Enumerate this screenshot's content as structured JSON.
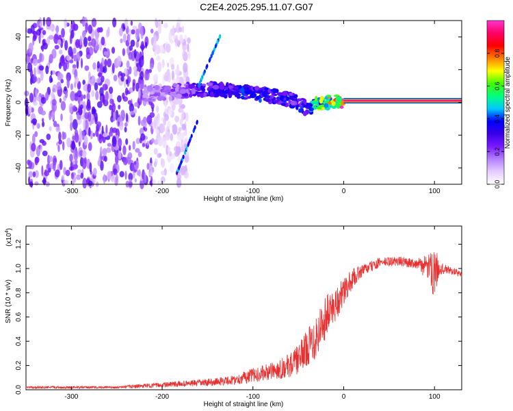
{
  "title": "C2E4.2025.295.11.07.G07",
  "chart_data": [
    {
      "type": "heatmap",
      "name": "spectrogram",
      "xlabel": "Height of straight line (km)",
      "ylabel": "Frequency (Hz)",
      "xlim": [
        -350,
        130
      ],
      "ylim": [
        -50,
        50
      ],
      "x_ticks": [
        -300,
        -200,
        -100,
        0,
        100
      ],
      "x_tick_labels": [
        "-300",
        "-200",
        "-100",
        "0",
        "100"
      ],
      "y_ticks": [
        -40,
        -20,
        0,
        20,
        40
      ],
      "y_tick_labels": [
        "-40",
        "-20",
        "0",
        "20",
        "40"
      ],
      "colorbar": {
        "label": "Normalized spectral amplitude",
        "range": [
          0,
          1
        ],
        "ticks": [
          0.0,
          0.2,
          0.4,
          0.6,
          0.8
        ],
        "tick_labels": [
          "0.0",
          "0.2",
          "0.4",
          "0.6",
          "0.8"
        ],
        "colors": [
          "#ffffff",
          "#e6ccff",
          "#b380ff",
          "#7a1aff",
          "#3a00e8",
          "#0000ff",
          "#00c8ff",
          "#00ff80",
          "#40ff00",
          "#ffff00",
          "#ff8000",
          "#ff0000",
          "#ff0066",
          "#ff33cc"
        ]
      },
      "noise_region_km": [
        -350,
        -210
      ],
      "signal_track": {
        "x_km": [
          -220,
          -180,
          -150,
          -120,
          -90,
          -70,
          -55,
          -45,
          -40,
          -30,
          -20,
          -10,
          0,
          130
        ],
        "freq_hz": [
          5,
          7,
          8,
          7,
          5,
          3,
          1,
          -2,
          -5,
          -1,
          0,
          1,
          1,
          1
        ],
        "amplitude": [
          0.15,
          0.2,
          0.3,
          0.35,
          0.35,
          0.35,
          0.3,
          0.35,
          0.3,
          0.55,
          0.65,
          0.7,
          0.95,
          0.95
        ]
      },
      "diagonal_features": [
        {
          "x_km": [
            -185,
            -160
          ],
          "freq_hz": [
            -45,
            -10
          ]
        },
        {
          "x_km": [
            -160,
            -135
          ],
          "freq_hz": [
            10,
            42
          ]
        }
      ]
    },
    {
      "type": "line",
      "name": "snr",
      "xlabel": "Height of straight line (km)",
      "ylabel": "SNR (10 * v/v)",
      "y_scale_label": "(x10",
      "y_scale_exponent": "4",
      "xlim": [
        -350,
        130
      ],
      "ylim": [
        0,
        1.35
      ],
      "x_ticks": [
        -300,
        -200,
        -100,
        0,
        100
      ],
      "x_tick_labels": [
        "-300",
        "-200",
        "-100",
        "0",
        "100"
      ],
      "y_ticks": [
        0.0,
        0.2,
        0.4,
        0.6,
        0.8,
        1.0,
        1.2
      ],
      "y_tick_labels": [
        "0.0",
        "0.2",
        "0.4",
        "0.6",
        "0.8",
        "1.0",
        "1.2"
      ],
      "line_color": "#e83030",
      "envelope": {
        "x_km": [
          -350,
          -250,
          -200,
          -150,
          -120,
          -100,
          -80,
          -60,
          -50,
          -40,
          -30,
          -20,
          -10,
          0,
          10,
          20,
          40,
          60,
          80,
          95,
          100,
          105,
          120,
          130
        ],
        "mean": [
          0.02,
          0.02,
          0.04,
          0.06,
          0.08,
          0.12,
          0.15,
          0.2,
          0.25,
          0.35,
          0.45,
          0.6,
          0.7,
          0.8,
          0.92,
          0.98,
          1.05,
          1.06,
          1.04,
          1.0,
          0.98,
          1.0,
          0.98,
          0.95
        ],
        "noise": [
          0.01,
          0.01,
          0.02,
          0.03,
          0.04,
          0.06,
          0.07,
          0.1,
          0.12,
          0.15,
          0.2,
          0.18,
          0.15,
          0.12,
          0.08,
          0.05,
          0.04,
          0.04,
          0.04,
          0.12,
          0.25,
          0.05,
          0.03,
          0.03
        ]
      }
    }
  ]
}
